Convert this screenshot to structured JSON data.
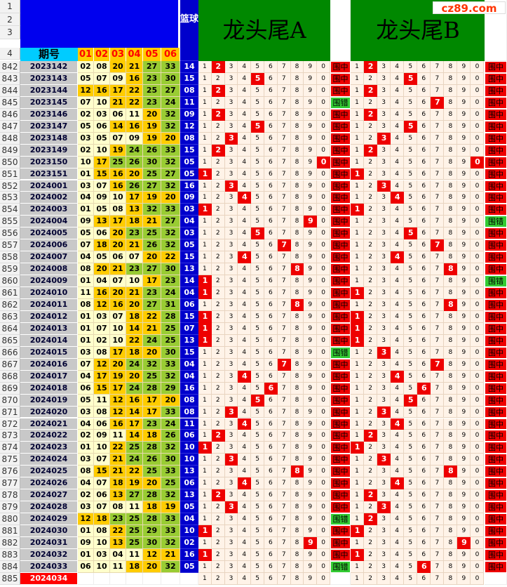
{
  "header": {
    "period_label": "期号",
    "ball_cols": [
      "01",
      "02",
      "03",
      "04",
      "05",
      "06"
    ],
    "blue_label": "篮球",
    "title_a": "龙头尾A",
    "title_b": "龙头尾B",
    "logo": "cz89.com",
    "top_row_numbers": [
      "1",
      "2",
      "3",
      "4"
    ]
  },
  "colors": {
    "hit": "#ee0000",
    "miss": "#33cc33",
    "blue": "#0000cc",
    "green": "#008800"
  },
  "result_labels": {
    "hit": "围中",
    "miss": "围错"
  },
  "rows": [
    {
      "rn": "842",
      "p": "2023142",
      "b": [
        "02",
        "08",
        "20",
        "21",
        "27",
        "33"
      ],
      "blue": "14",
      "a": [
        2
      ],
      "ar": "围中",
      "bh": [
        2
      ],
      "br": "围中"
    },
    {
      "rn": "843",
      "p": "2023143",
      "b": [
        "05",
        "07",
        "09",
        "16",
        "23",
        "30"
      ],
      "blue": "15",
      "a": [
        5
      ],
      "ar": "围中",
      "bh": [
        5
      ],
      "br": "围中"
    },
    {
      "rn": "844",
      "p": "2023144",
      "b": [
        "12",
        "16",
        "17",
        "22",
        "25",
        "27"
      ],
      "blue": "08",
      "a": [
        2
      ],
      "ar": "围中",
      "bh": [
        2
      ],
      "br": "围中"
    },
    {
      "rn": "845",
      "p": "2023145",
      "b": [
        "07",
        "10",
        "21",
        "22",
        "23",
        "24"
      ],
      "blue": "11",
      "a": [],
      "ar": "围错",
      "bh": [
        7
      ],
      "br": "围中"
    },
    {
      "rn": "846",
      "p": "2023146",
      "b": [
        "02",
        "03",
        "06",
        "11",
        "20",
        "32"
      ],
      "blue": "09",
      "a": [
        2
      ],
      "ar": "围中",
      "bh": [
        2
      ],
      "br": "围中"
    },
    {
      "rn": "847",
      "p": "2023147",
      "b": [
        "05",
        "06",
        "14",
        "16",
        "19",
        "32"
      ],
      "blue": "12",
      "a": [
        5
      ],
      "ar": "围中",
      "bh": [
        5
      ],
      "br": "围中"
    },
    {
      "rn": "848",
      "p": "2023148",
      "b": [
        "03",
        "05",
        "07",
        "09",
        "19",
        "20"
      ],
      "blue": "08",
      "a": [
        3
      ],
      "ar": "围中",
      "bh": [
        3
      ],
      "br": "围中"
    },
    {
      "rn": "849",
      "p": "2023149",
      "b": [
        "02",
        "10",
        "19",
        "24",
        "26",
        "33"
      ],
      "blue": "15",
      "a": [
        2
      ],
      "ar": "围中",
      "bh": [
        2
      ],
      "br": "围中"
    },
    {
      "rn": "850",
      "p": "2023150",
      "b": [
        "10",
        "17",
        "25",
        "26",
        "30",
        "32"
      ],
      "blue": "05",
      "a": [
        0
      ],
      "ar": "围中",
      "bh": [
        0
      ],
      "br": "围中"
    },
    {
      "rn": "851",
      "p": "2023151",
      "b": [
        "01",
        "15",
        "16",
        "20",
        "25",
        "27"
      ],
      "blue": "05",
      "a": [
        1
      ],
      "ar": "围中",
      "bh": [
        1
      ],
      "br": "围中"
    },
    {
      "rn": "852",
      "p": "2024001",
      "b": [
        "03",
        "07",
        "16",
        "26",
        "27",
        "32"
      ],
      "blue": "16",
      "a": [
        3
      ],
      "ar": "围中",
      "bh": [
        3
      ],
      "br": "围中"
    },
    {
      "rn": "853",
      "p": "2024002",
      "b": [
        "04",
        "09",
        "10",
        "17",
        "19",
        "20"
      ],
      "blue": "09",
      "a": [
        4
      ],
      "ar": "围中",
      "bh": [
        4
      ],
      "br": "围中"
    },
    {
      "rn": "854",
      "p": "2024003",
      "b": [
        "01",
        "05",
        "08",
        "13",
        "32",
        "33"
      ],
      "blue": "03",
      "a": [
        1
      ],
      "ar": "围中",
      "bh": [
        1
      ],
      "br": "围中"
    },
    {
      "rn": "855",
      "p": "2024004",
      "b": [
        "09",
        "13",
        "17",
        "18",
        "21",
        "27"
      ],
      "blue": "04",
      "a": [
        9
      ],
      "ar": "围中",
      "bh": [],
      "br": "围错"
    },
    {
      "rn": "856",
      "p": "2024005",
      "b": [
        "05",
        "06",
        "20",
        "23",
        "25",
        "32"
      ],
      "blue": "03",
      "a": [
        5
      ],
      "ar": "围中",
      "bh": [
        5
      ],
      "br": "围中"
    },
    {
      "rn": "857",
      "p": "2024006",
      "b": [
        "07",
        "18",
        "20",
        "21",
        "26",
        "32"
      ],
      "blue": "05",
      "a": [
        7
      ],
      "ar": "围中",
      "bh": [
        7
      ],
      "br": "围中"
    },
    {
      "rn": "858",
      "p": "2024007",
      "b": [
        "04",
        "05",
        "06",
        "07",
        "20",
        "22"
      ],
      "blue": "15",
      "a": [
        4
      ],
      "ar": "围中",
      "bh": [
        4
      ],
      "br": "围中"
    },
    {
      "rn": "859",
      "p": "2024008",
      "b": [
        "08",
        "20",
        "21",
        "23",
        "27",
        "30"
      ],
      "blue": "13",
      "a": [
        8
      ],
      "ar": "围中",
      "bh": [
        8
      ],
      "br": "围中"
    },
    {
      "rn": "860",
      "p": "2024009",
      "b": [
        "01",
        "04",
        "07",
        "10",
        "17",
        "23"
      ],
      "blue": "14",
      "a": [
        1
      ],
      "ar": "围中",
      "bh": [],
      "br": "围错"
    },
    {
      "rn": "861",
      "p": "2024010",
      "b": [
        "11",
        "16",
        "20",
        "21",
        "23",
        "24"
      ],
      "blue": "04",
      "a": [
        1
      ],
      "ar": "围中",
      "bh": [
        1
      ],
      "br": "围中"
    },
    {
      "rn": "862",
      "p": "2024011",
      "b": [
        "08",
        "12",
        "16",
        "20",
        "27",
        "31"
      ],
      "blue": "06",
      "a": [
        8
      ],
      "ar": "围中",
      "bh": [
        8
      ],
      "br": "围中"
    },
    {
      "rn": "863",
      "p": "2024012",
      "b": [
        "01",
        "03",
        "07",
        "18",
        "22",
        "28"
      ],
      "blue": "15",
      "a": [
        1
      ],
      "ar": "围中",
      "bh": [
        1
      ],
      "br": "围中"
    },
    {
      "rn": "864",
      "p": "2024013",
      "b": [
        "01",
        "07",
        "10",
        "14",
        "21",
        "25"
      ],
      "blue": "07",
      "a": [
        1
      ],
      "ar": "围中",
      "bh": [
        1
      ],
      "br": "围中"
    },
    {
      "rn": "865",
      "p": "2024014",
      "b": [
        "01",
        "02",
        "10",
        "22",
        "24",
        "25"
      ],
      "blue": "13",
      "a": [
        1
      ],
      "ar": "围中",
      "bh": [
        1
      ],
      "br": "围中"
    },
    {
      "rn": "866",
      "p": "2024015",
      "b": [
        "03",
        "08",
        "17",
        "18",
        "20",
        "30"
      ],
      "blue": "15",
      "a": [],
      "ar": "围错",
      "bh": [
        3
      ],
      "br": "围中"
    },
    {
      "rn": "867",
      "p": "2024016",
      "b": [
        "07",
        "12",
        "20",
        "24",
        "32",
        "33"
      ],
      "blue": "04",
      "a": [
        7
      ],
      "ar": "围中",
      "bh": [
        7
      ],
      "br": "围中"
    },
    {
      "rn": "868",
      "p": "2024017",
      "b": [
        "04",
        "17",
        "19",
        "20",
        "25",
        "32"
      ],
      "blue": "04",
      "a": [
        4
      ],
      "ar": "围中",
      "bh": [
        4
      ],
      "br": "围中"
    },
    {
      "rn": "869",
      "p": "2024018",
      "b": [
        "06",
        "15",
        "17",
        "24",
        "28",
        "29"
      ],
      "blue": "16",
      "a": [
        6
      ],
      "ar": "围中",
      "bh": [
        6
      ],
      "br": "围中"
    },
    {
      "rn": "870",
      "p": "2024019",
      "b": [
        "05",
        "11",
        "12",
        "16",
        "17",
        "20"
      ],
      "blue": "08",
      "a": [
        5
      ],
      "ar": "围中",
      "bh": [
        5
      ],
      "br": "围中"
    },
    {
      "rn": "871",
      "p": "2024020",
      "b": [
        "03",
        "08",
        "12",
        "14",
        "17",
        "33"
      ],
      "blue": "08",
      "a": [
        3
      ],
      "ar": "围中",
      "bh": [
        3
      ],
      "br": "围中"
    },
    {
      "rn": "872",
      "p": "2024021",
      "b": [
        "04",
        "06",
        "16",
        "17",
        "23",
        "24"
      ],
      "blue": "11",
      "a": [
        4
      ],
      "ar": "围中",
      "bh": [
        4
      ],
      "br": "围中"
    },
    {
      "rn": "873",
      "p": "2024022",
      "b": [
        "02",
        "09",
        "11",
        "14",
        "18",
        "26"
      ],
      "blue": "06",
      "a": [
        2
      ],
      "ar": "围中",
      "bh": [
        2
      ],
      "br": "围中"
    },
    {
      "rn": "874",
      "p": "2024023",
      "b": [
        "01",
        "10",
        "22",
        "25",
        "28",
        "32"
      ],
      "blue": "10",
      "a": [
        1
      ],
      "ar": "围中",
      "bh": [
        1
      ],
      "br": "围中"
    },
    {
      "rn": "875",
      "p": "2024024",
      "b": [
        "03",
        "07",
        "21",
        "24",
        "26",
        "30"
      ],
      "blue": "10",
      "a": [
        3
      ],
      "ar": "围中",
      "bh": [
        3
      ],
      "br": "围中"
    },
    {
      "rn": "876",
      "p": "2024025",
      "b": [
        "08",
        "15",
        "21",
        "22",
        "25",
        "33"
      ],
      "blue": "13",
      "a": [
        8
      ],
      "ar": "围中",
      "bh": [
        8
      ],
      "br": "围中"
    },
    {
      "rn": "877",
      "p": "2024026",
      "b": [
        "04",
        "07",
        "18",
        "19",
        "20",
        "25"
      ],
      "blue": "06",
      "a": [
        4
      ],
      "ar": "围中",
      "bh": [
        4
      ],
      "br": "围中"
    },
    {
      "rn": "878",
      "p": "2024027",
      "b": [
        "02",
        "06",
        "13",
        "27",
        "28",
        "32"
      ],
      "blue": "13",
      "a": [
        2
      ],
      "ar": "围中",
      "bh": [
        2
      ],
      "br": "围中"
    },
    {
      "rn": "879",
      "p": "2024028",
      "b": [
        "03",
        "07",
        "08",
        "11",
        "18",
        "19"
      ],
      "blue": "05",
      "a": [
        3
      ],
      "ar": "围中",
      "bh": [
        3
      ],
      "br": "围中"
    },
    {
      "rn": "880",
      "p": "2024029",
      "b": [
        "12",
        "18",
        "23",
        "25",
        "28",
        "33"
      ],
      "blue": "04",
      "a": [],
      "ar": "围错",
      "bh": [
        2
      ],
      "br": "围中"
    },
    {
      "rn": "881",
      "p": "2024030",
      "b": [
        "01",
        "08",
        "22",
        "25",
        "29",
        "33"
      ],
      "blue": "10",
      "a": [
        1
      ],
      "ar": "围中",
      "bh": [
        1
      ],
      "br": "围中"
    },
    {
      "rn": "882",
      "p": "2024031",
      "b": [
        "09",
        "10",
        "13",
        "25",
        "30",
        "32"
      ],
      "blue": "02",
      "a": [
        9
      ],
      "ar": "围中",
      "bh": [
        9
      ],
      "br": "围中"
    },
    {
      "rn": "883",
      "p": "2024032",
      "b": [
        "01",
        "03",
        "04",
        "11",
        "12",
        "21"
      ],
      "blue": "16",
      "a": [
        1
      ],
      "ar": "围中",
      "bh": [
        1
      ],
      "br": "围中"
    },
    {
      "rn": "884",
      "p": "2024033",
      "b": [
        "06",
        "10",
        "11",
        "18",
        "20",
        "32"
      ],
      "blue": "05",
      "a": [],
      "ar": "围错",
      "bh": [
        6
      ],
      "br": "围中"
    },
    {
      "rn": "885",
      "p": "2024034",
      "b": [
        "",
        "",
        "",
        "",
        "",
        ""
      ],
      "blue": "",
      "a": [],
      "ar": "",
      "bh": [],
      "br": ""
    }
  ]
}
